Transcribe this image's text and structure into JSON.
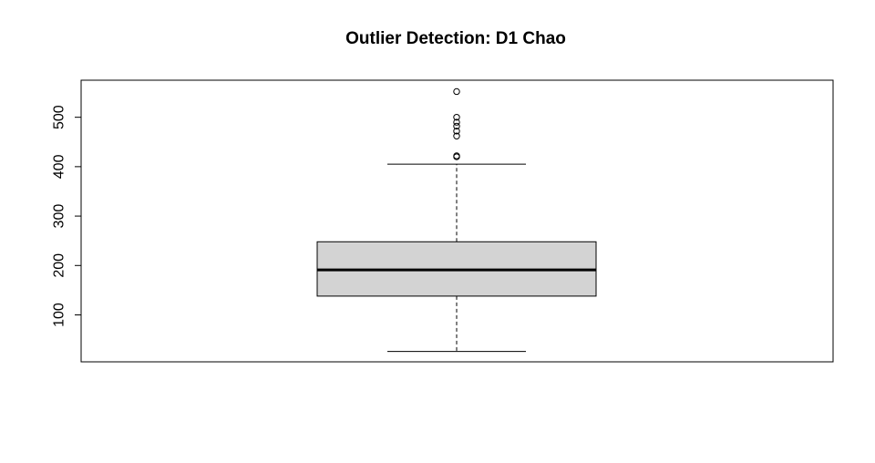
{
  "chart_data": {
    "type": "boxplot",
    "title": "Outlier Detection: D1 Chao",
    "xlabel": "",
    "ylabel": "",
    "ylim": [
      5,
      575
    ],
    "y_ticks": [
      100,
      200,
      300,
      400,
      500
    ],
    "grid": false,
    "box_fill": "#d3d3d3",
    "series": [
      {
        "whisker_low": 26,
        "q1": 138,
        "median": 191,
        "q3": 248,
        "whisker_high": 405,
        "outliers": [
          552,
          500,
          490,
          482,
          472,
          462,
          422,
          420
        ]
      }
    ]
  }
}
